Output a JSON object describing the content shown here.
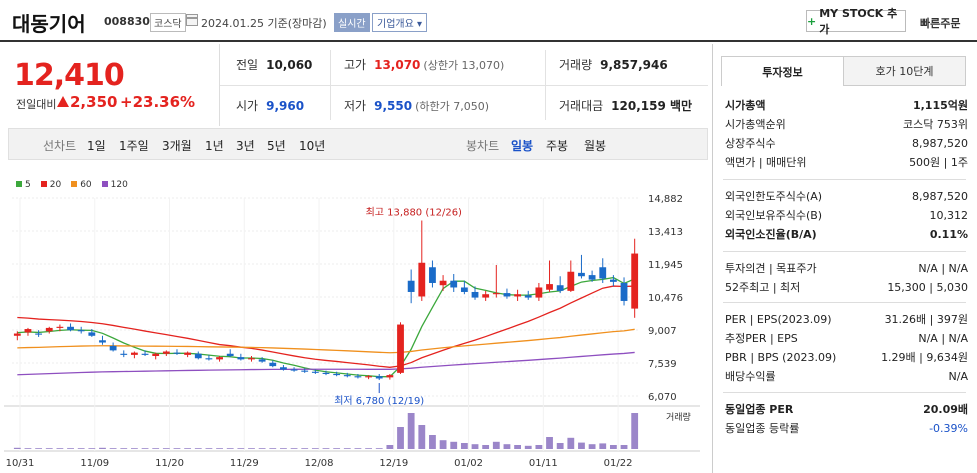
{
  "header": {
    "name": "대동기어",
    "code": "008830",
    "market": "코스닥",
    "date": "2024.01.25  기준(장마감)",
    "realtime": "실시간",
    "info": "기업개요",
    "mystock": "MY STOCK 추가",
    "quick_order": "빠른주문"
  },
  "price": {
    "current": "12,410",
    "change_label": "전일대비",
    "change": "2,350",
    "rate": "+23.36%"
  },
  "quote": {
    "prev_label": "전일",
    "prev": "10,060",
    "high_label": "고가",
    "high": "13,070",
    "high_limit": "(상한가 13,070)",
    "volume_label": "거래량",
    "volume": "9,857,946",
    "open_label": "시가",
    "open": "9,960",
    "low_label": "저가",
    "low": "9,550",
    "low_limit": "(하한가 7,050)",
    "amount_label": "거래대금",
    "amount": "120,159 백만"
  },
  "toolbar": {
    "line_title": "선차트",
    "periods": [
      "1일",
      "1주일",
      "3개월",
      "1년",
      "3년",
      "5년",
      "10년"
    ],
    "candle_title": "봉차트",
    "candles": [
      "일봉",
      "주봉",
      "월봉"
    ],
    "active_candle": "일봉"
  },
  "chart_data": {
    "type": "candlestick",
    "legend": [
      "5",
      "20",
      "60",
      "120"
    ],
    "legend_colors": [
      "#3ca83c",
      "#e4231f",
      "#f0901e",
      "#8e4fc0"
    ],
    "y_ticks": [
      "14,882",
      "13,413",
      "11,945",
      "10,476",
      "9,007",
      "7,539",
      "6,070"
    ],
    "x_ticks": [
      "10/31",
      "11/09",
      "11/20",
      "11/29",
      "12/08",
      "12/19",
      "01/02",
      "01/11",
      "01/22"
    ],
    "ylim": [
      6070,
      14882
    ],
    "high_annotation": "최고 13,880 (12/26)",
    "low_annotation": "최저 6,780 (12/19)",
    "volume_label": "거래량",
    "candles": [
      {
        "o": 8750,
        "h": 8950,
        "l": 8550,
        "c": 8850
      },
      {
        "o": 8900,
        "h": 9100,
        "l": 8750,
        "c": 9050
      },
      {
        "o": 8850,
        "h": 9000,
        "l": 8700,
        "c": 8800
      },
      {
        "o": 8950,
        "h": 9150,
        "l": 8850,
        "c": 9100
      },
      {
        "o": 9100,
        "h": 9250,
        "l": 8950,
        "c": 9150
      },
      {
        "o": 9150,
        "h": 9300,
        "l": 8950,
        "c": 9000
      },
      {
        "o": 9000,
        "h": 9150,
        "l": 8850,
        "c": 8950
      },
      {
        "o": 8900,
        "h": 9050,
        "l": 8700,
        "c": 8750
      },
      {
        "o": 8550,
        "h": 8750,
        "l": 8350,
        "c": 8450
      },
      {
        "o": 8300,
        "h": 8450,
        "l": 8050,
        "c": 8100
      },
      {
        "o": 7950,
        "h": 8100,
        "l": 7800,
        "c": 7900
      },
      {
        "o": 7900,
        "h": 8050,
        "l": 7750,
        "c": 8000
      },
      {
        "o": 7950,
        "h": 8100,
        "l": 7850,
        "c": 7900
      },
      {
        "o": 7850,
        "h": 8000,
        "l": 7700,
        "c": 7950
      },
      {
        "o": 7950,
        "h": 8100,
        "l": 7850,
        "c": 8050
      },
      {
        "o": 8000,
        "h": 8150,
        "l": 7900,
        "c": 7950
      },
      {
        "o": 7900,
        "h": 8050,
        "l": 7800,
        "c": 8000
      },
      {
        "o": 7950,
        "h": 8050,
        "l": 7700,
        "c": 7750
      },
      {
        "o": 7750,
        "h": 7900,
        "l": 7650,
        "c": 7700
      },
      {
        "o": 7700,
        "h": 7850,
        "l": 7600,
        "c": 7800
      },
      {
        "o": 7950,
        "h": 8150,
        "l": 7800,
        "c": 7850
      },
      {
        "o": 7800,
        "h": 7950,
        "l": 7650,
        "c": 7700
      },
      {
        "o": 7700,
        "h": 7850,
        "l": 7600,
        "c": 7750
      },
      {
        "o": 7700,
        "h": 7800,
        "l": 7550,
        "c": 7600
      },
      {
        "o": 7550,
        "h": 7650,
        "l": 7350,
        "c": 7400
      },
      {
        "o": 7350,
        "h": 7450,
        "l": 7200,
        "c": 7250
      },
      {
        "o": 7250,
        "h": 7350,
        "l": 7150,
        "c": 7200
      },
      {
        "o": 7200,
        "h": 7300,
        "l": 7100,
        "c": 7150
      },
      {
        "o": 7150,
        "h": 7250,
        "l": 7050,
        "c": 7100
      },
      {
        "o": 7100,
        "h": 7200,
        "l": 7000,
        "c": 7050
      },
      {
        "o": 7050,
        "h": 7150,
        "l": 6950,
        "c": 7000
      },
      {
        "o": 7000,
        "h": 7100,
        "l": 6900,
        "c": 6950
      },
      {
        "o": 6950,
        "h": 7050,
        "l": 6850,
        "c": 6900
      },
      {
        "o": 6900,
        "h": 7000,
        "l": 6820,
        "c": 6950
      },
      {
        "o": 6950,
        "h": 7050,
        "l": 6780,
        "c": 6850
      },
      {
        "o": 6900,
        "h": 7050,
        "l": 6800,
        "c": 7000
      },
      {
        "o": 7100,
        "h": 9350,
        "l": 7050,
        "c": 9250
      },
      {
        "o": 11200,
        "h": 11700,
        "l": 10200,
        "c": 10700
      },
      {
        "o": 10500,
        "h": 13880,
        "l": 10300,
        "c": 12000
      },
      {
        "o": 11800,
        "h": 12100,
        "l": 10900,
        "c": 11100
      },
      {
        "o": 11000,
        "h": 11450,
        "l": 10750,
        "c": 11200
      },
      {
        "o": 11200,
        "h": 11500,
        "l": 10700,
        "c": 10900
      },
      {
        "o": 10900,
        "h": 11200,
        "l": 10600,
        "c": 10700
      },
      {
        "o": 10700,
        "h": 10950,
        "l": 10350,
        "c": 10450
      },
      {
        "o": 10450,
        "h": 10750,
        "l": 10300,
        "c": 10600
      },
      {
        "o": 10600,
        "h": 11900,
        "l": 10450,
        "c": 10650
      },
      {
        "o": 10650,
        "h": 10850,
        "l": 10400,
        "c": 10500
      },
      {
        "o": 10500,
        "h": 10800,
        "l": 10300,
        "c": 10600
      },
      {
        "o": 10550,
        "h": 10750,
        "l": 10350,
        "c": 10450
      },
      {
        "o": 10450,
        "h": 11100,
        "l": 10300,
        "c": 10900
      },
      {
        "o": 10800,
        "h": 12100,
        "l": 10700,
        "c": 11050
      },
      {
        "o": 11000,
        "h": 11400,
        "l": 10650,
        "c": 10750
      },
      {
        "o": 10750,
        "h": 12100,
        "l": 10700,
        "c": 11600
      },
      {
        "o": 11550,
        "h": 12350,
        "l": 11300,
        "c": 11400
      },
      {
        "o": 11450,
        "h": 11650,
        "l": 11150,
        "c": 11250
      },
      {
        "o": 11800,
        "h": 12200,
        "l": 11100,
        "c": 11300
      },
      {
        "o": 11250,
        "h": 11450,
        "l": 10950,
        "c": 11150
      },
      {
        "o": 11100,
        "h": 11350,
        "l": 10100,
        "c": 10300
      },
      {
        "o": 9960,
        "h": 13070,
        "l": 9550,
        "c": 12410
      }
    ],
    "volumes": [
      3,
      2,
      2,
      2,
      2,
      2,
      2,
      2,
      3,
      2,
      2,
      2,
      2,
      2,
      2,
      2,
      2,
      2,
      2,
      2,
      2,
      2,
      2,
      2,
      2,
      2,
      2,
      2,
      2,
      2,
      2,
      2,
      2,
      2,
      2,
      10,
      55,
      90,
      60,
      35,
      22,
      18,
      15,
      12,
      10,
      18,
      12,
      10,
      8,
      10,
      30,
      15,
      28,
      16,
      12,
      14,
      10,
      10,
      90
    ]
  },
  "side": {
    "tab_active": "투자정보",
    "tab_other": "호가 10단계",
    "s1": [
      {
        "l": "시가총액",
        "r": "1,115억원",
        "bold": true
      },
      {
        "l": "시가총액순위",
        "r": "코스닥 753위"
      },
      {
        "l": "상장주식수",
        "r": "8,987,520"
      },
      {
        "l": "액면가 | 매매단위",
        "r": "500원  |  1주"
      }
    ],
    "s2": [
      {
        "l": "외국인한도주식수(A)",
        "r": "8,987,520"
      },
      {
        "l": "외국인보유주식수(B)",
        "r": "10,312"
      },
      {
        "l": "외국인소진율(B/A)",
        "r": "0.11%",
        "bold": true
      }
    ],
    "s3": [
      {
        "l": "투자의견 | 목표주가",
        "r": "N/A  |  N/A"
      },
      {
        "l": "52주최고 | 최저",
        "r": "15,300  |  5,030"
      }
    ],
    "s4": [
      {
        "l": "PER | EPS(2023.09)",
        "r": "31.26배  |  397원"
      },
      {
        "l": "추정PER | EPS",
        "r": "N/A  |  N/A"
      },
      {
        "l": "PBR | BPS (2023.09)",
        "r": "1.29배  |  9,634원"
      },
      {
        "l": "배당수익률",
        "r": "N/A"
      }
    ],
    "s5": [
      {
        "l": "동일업종 PER",
        "r": "20.09배",
        "bold": true
      },
      {
        "l": "동일업종 등락률",
        "r": "-0.39%",
        "blue": true
      }
    ]
  }
}
